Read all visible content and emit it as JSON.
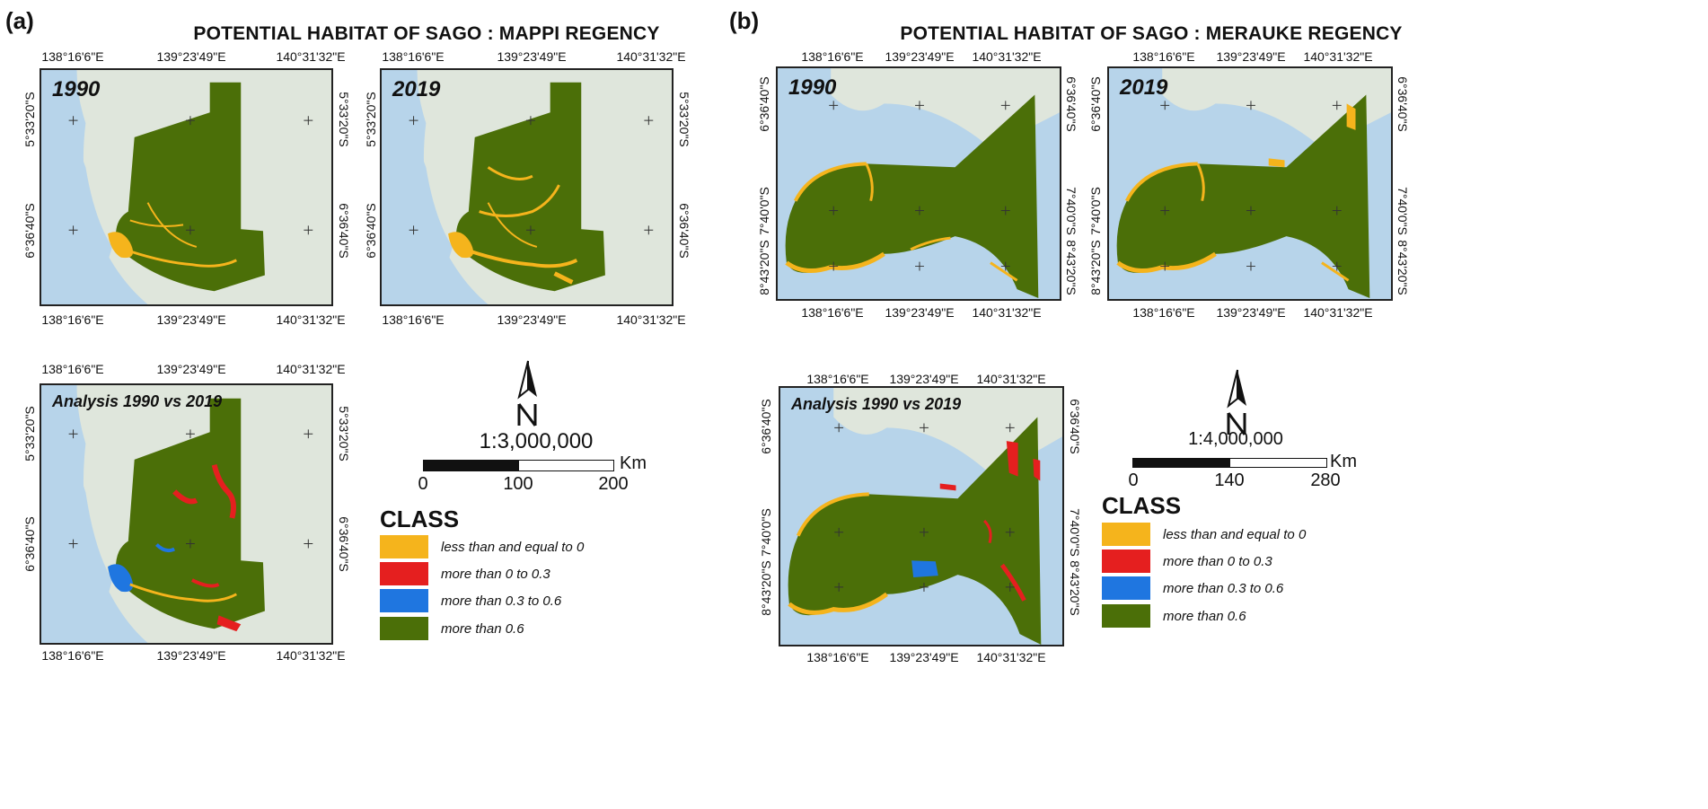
{
  "panel_a": {
    "letter": "(a)",
    "title": "POTENTIAL HABITAT OF SAGO : MAPPI REGENCY",
    "maps": {
      "m1990": "1990",
      "m2019": "2019",
      "analysis": "Analysis 1990 vs 2019"
    },
    "lon_ticks": [
      "138°16'6\"E",
      "139°23'49\"E",
      "140°31'32\"E"
    ],
    "lat_ticks": [
      "5°33'20\"S",
      "6°36'40\"S"
    ],
    "scale_ratio": "1:3,000,000",
    "scale_numbers": [
      "0",
      "100",
      "200"
    ],
    "scale_unit": "Km"
  },
  "panel_b": {
    "letter": "(b)",
    "title": "POTENTIAL HABITAT OF SAGO : MERAUKE REGENCY",
    "maps": {
      "m1990": "1990",
      "m2019": "2019",
      "analysis": "Analysis 1990 vs 2019"
    },
    "lon_ticks": [
      "138°16'6\"E",
      "139°23'49\"E",
      "140°31'32\"E"
    ],
    "lat_ticks": [
      "6°36'40\"S",
      "7°40'0\"S",
      "8°43'20\"S"
    ],
    "scale_ratio": "1:4,000,000",
    "scale_numbers": [
      "0",
      "140",
      "280"
    ],
    "scale_unit": "Km"
  },
  "legend": {
    "title": "CLASS",
    "items": [
      {
        "label": "less than and equal to 0",
        "color": "#f5b41c"
      },
      {
        "label": "more than 0 to 0.3",
        "color": "#e51f1f"
      },
      {
        "label": "more than 0.3 to 0.6",
        "color": "#1f76e0"
      },
      {
        "label": "more than 0.6",
        "color": "#4b6f08"
      }
    ]
  },
  "colors": {
    "sea": "#b7d4ea",
    "land": "#dfe6dc",
    "habitat": "#4b6f08",
    "river": "#cfe2f2"
  }
}
